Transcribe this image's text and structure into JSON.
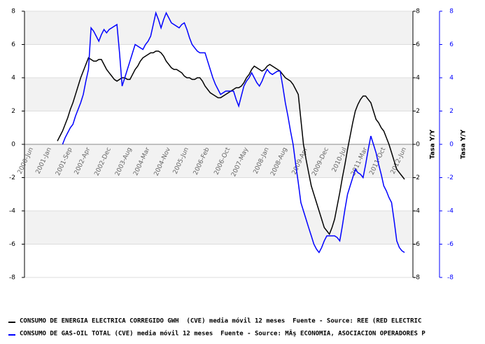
{
  "chart_data": {
    "type": "line",
    "y_label": "Tasa Y/Y",
    "y2_label": "Tasa Y/Y",
    "categories": [
      "2000-Jun",
      null,
      null,
      null,
      null,
      null,
      null,
      "2001-Jan",
      null,
      null,
      null,
      null,
      null,
      null,
      null,
      "2001-Sep",
      null,
      null,
      null,
      null,
      null,
      null,
      "2002-Apr",
      null,
      null,
      null,
      null,
      null,
      null,
      null,
      "2002-Dec",
      null,
      null,
      null,
      null,
      null,
      null,
      null,
      "2003-Aug",
      null,
      null,
      null,
      null,
      null,
      null,
      "2004-Mar",
      null,
      null,
      null,
      null,
      null,
      null,
      null,
      "2004-Nov",
      null,
      null,
      null,
      null,
      null,
      null,
      "2005-Jun",
      null,
      null,
      null,
      null,
      null,
      null,
      null,
      "2006-Feb",
      null,
      null,
      null,
      null,
      null,
      null,
      null,
      "2006-Oct",
      null,
      null,
      null,
      null,
      null,
      null,
      "2007-May",
      null,
      null,
      null,
      null,
      null,
      null,
      null,
      "2008-Jan",
      null,
      null,
      null,
      null,
      null,
      null,
      "2008-Aug",
      null,
      null,
      null,
      null,
      null,
      null,
      null,
      "2009-Apr",
      null,
      null,
      null,
      null,
      null,
      null,
      null,
      "2009-Dec",
      null,
      null,
      null,
      null,
      null,
      null,
      "2010-Jul",
      null,
      null,
      null,
      null,
      null,
      null,
      null,
      "2011-Mar",
      null,
      null,
      null,
      null,
      null,
      null,
      "2011-Oct",
      null,
      null,
      null,
      null,
      null,
      null,
      null,
      "2012-Jun"
    ],
    "series": [
      {
        "name": "CONSUMO DE ENERGIA ELECTRICA CORREGIDO GWH  (CVE) media móvil 12 meses  Fuente - Source: REE (RED ELECTRIC",
        "color": "#000000",
        "values": [
          null,
          null,
          null,
          null,
          null,
          null,
          null,
          null,
          null,
          null,
          0.2,
          0.5,
          0.8,
          1.2,
          1.6,
          2.1,
          2.5,
          3.0,
          3.5,
          4.0,
          4.4,
          4.8,
          5.2,
          5.1,
          5.0,
          5.0,
          5.1,
          5.1,
          4.8,
          4.5,
          4.3,
          4.1,
          3.9,
          3.8,
          3.9,
          4.0,
          4.0,
          3.9,
          3.9,
          4.2,
          4.5,
          4.7,
          5.0,
          5.2,
          5.3,
          5.4,
          5.5,
          5.5,
          5.6,
          5.6,
          5.5,
          5.3,
          5.0,
          4.8,
          4.6,
          4.5,
          4.5,
          4.4,
          4.3,
          4.1,
          4.0,
          4.0,
          3.9,
          3.9,
          4.0,
          4.0,
          3.8,
          3.5,
          3.3,
          3.1,
          3.0,
          2.9,
          2.8,
          2.8,
          2.9,
          3.0,
          3.1,
          3.2,
          3.3,
          3.4,
          3.4,
          3.5,
          3.7,
          4.0,
          4.2,
          4.5,
          4.7,
          4.6,
          4.5,
          4.4,
          4.5,
          4.7,
          4.8,
          4.7,
          4.6,
          4.5,
          4.4,
          4.2,
          4.0,
          3.9,
          3.8,
          3.6,
          3.3,
          3.0,
          1.5,
          0.0,
          -0.9,
          -1.7,
          -2.5,
          -3.0,
          -3.5,
          -4.0,
          -4.5,
          -5.0,
          -5.2,
          -5.4,
          -5.0,
          -4.5,
          -3.7,
          -2.9,
          -2.0,
          -1.2,
          -0.3,
          0.5,
          1.3,
          2.0,
          2.4,
          2.7,
          2.9,
          2.9,
          2.7,
          2.5,
          2.0,
          1.5,
          1.3,
          1.0,
          0.8,
          0.4,
          0.0,
          -0.5,
          -1.0,
          -1.5,
          -1.7,
          -1.9,
          -2.1
        ]
      },
      {
        "name": "CONSUMO DE GAS-OIL TOTAL (CVE) media móvil 12 meses  Fuente - Source: MÂş ECONOMIA, ASOCIACION OPERADORES P",
        "color": "#0000ff",
        "axis": "y2",
        "values": [
          null,
          null,
          null,
          null,
          null,
          null,
          null,
          null,
          null,
          null,
          null,
          null,
          0.0,
          0.4,
          0.7,
          1.0,
          1.2,
          1.7,
          2.1,
          2.5,
          3.0,
          3.8,
          4.5,
          7.0,
          6.8,
          6.5,
          6.2,
          6.6,
          6.9,
          6.7,
          6.9,
          7.0,
          7.1,
          7.2,
          5.5,
          3.5,
          4.0,
          4.5,
          5.0,
          5.5,
          6.0,
          5.9,
          5.8,
          5.7,
          6.0,
          6.2,
          6.5,
          7.2,
          7.9,
          7.5,
          7.0,
          7.5,
          7.9,
          7.6,
          7.3,
          7.2,
          7.1,
          7.0,
          7.2,
          7.3,
          6.9,
          6.4,
          6.0,
          5.8,
          5.6,
          5.5,
          5.5,
          5.5,
          5.0,
          4.5,
          4.0,
          3.6,
          3.3,
          3.0,
          3.1,
          3.2,
          3.2,
          3.2,
          3.2,
          2.7,
          2.3,
          2.9,
          3.5,
          3.8,
          4.0,
          4.3,
          4.0,
          3.7,
          3.5,
          3.8,
          4.2,
          4.5,
          4.3,
          4.2,
          4.3,
          4.4,
          4.4,
          3.5,
          2.5,
          1.7,
          0.8,
          0.0,
          -1.2,
          -2.3,
          -3.5,
          -4.0,
          -4.5,
          -5.0,
          -5.5,
          -6.0,
          -6.3,
          -6.5,
          -6.2,
          -5.8,
          -5.5,
          -5.5,
          -5.5,
          -5.5,
          -5.6,
          -5.8,
          -4.9,
          -3.9,
          -3.0,
          -2.5,
          -2.0,
          -1.5,
          -1.7,
          -1.8,
          -2.0,
          -1.2,
          -0.3,
          0.5,
          0.0,
          -0.5,
          -1.2,
          -1.8,
          -2.5,
          -2.8,
          -3.2,
          -3.5,
          -4.6,
          -5.8,
          -6.2,
          -6.4,
          -6.5
        ]
      }
    ],
    "ylim": [
      -8,
      8
    ],
    "yticks": [
      -8,
      -6,
      -4,
      -2,
      0,
      2,
      4,
      6,
      8
    ],
    "y2lim": [
      -8,
      8
    ],
    "y2ticks": [
      -8,
      -6,
      -4,
      -2,
      0,
      2,
      4,
      6,
      8
    ],
    "grid": true
  }
}
